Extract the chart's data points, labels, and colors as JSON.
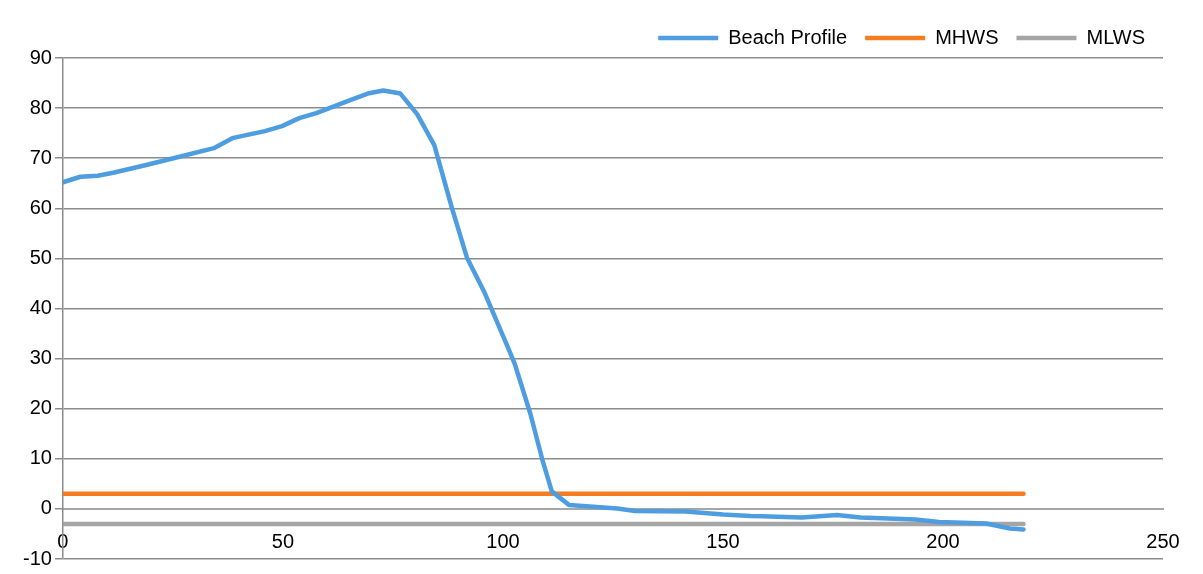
{
  "chart_data": {
    "type": "line",
    "series": [
      {
        "name": "Beach Profile",
        "color": "#4e9de0",
        "x": [
          0,
          4,
          7.9,
          11.4,
          18.7,
          26.5,
          34.3,
          38.5,
          45.9,
          49.8,
          53.7,
          57.6,
          65.3,
          69.3,
          72.8,
          76.7,
          80.5,
          84.4,
          88.3,
          91.8,
          95.7,
          101.1,
          102.7,
          106.2,
          108.9,
          111.1,
          115,
          126,
          130,
          141.6,
          150,
          156.3,
          167.9,
          175.9,
          181.3,
          193.7,
          199.1,
          209.8,
          215.2,
          218.3
        ],
        "values": [
          65.2,
          66.3,
          66.5,
          67.1,
          68.6,
          70.3,
          72.0,
          74.0,
          75.4,
          76.4,
          78.0,
          79.0,
          81.6,
          82.9,
          83.5,
          82.9,
          78.8,
          72.6,
          60.4,
          50.2,
          43.4,
          32.3,
          28.9,
          19.1,
          10.0,
          3.5,
          0.8,
          0.1,
          -0.4,
          -0.5,
          -1.1,
          -1.4,
          -1.7,
          -1.2,
          -1.7,
          -2.1,
          -2.6,
          -2.9,
          -3.9,
          -4.1
        ]
      },
      {
        "name": "MHWS",
        "color": "#f57c20",
        "x": [
          0,
          218.3
        ],
        "values": [
          3,
          3
        ]
      },
      {
        "name": "MLWS",
        "color": "#a5a5a5",
        "x": [
          0,
          218.3
        ],
        "values": [
          -3,
          -3
        ]
      }
    ],
    "xlim": [
      0,
      250
    ],
    "xticks": [
      0,
      50,
      100,
      150,
      200,
      250
    ],
    "ylim": [
      -10,
      90
    ],
    "yticks": [
      -10,
      0,
      10,
      20,
      30,
      40,
      50,
      60,
      70,
      80,
      90
    ],
    "grid": "y",
    "legend": "top right",
    "marker": "none",
    "line_style": "solid"
  }
}
